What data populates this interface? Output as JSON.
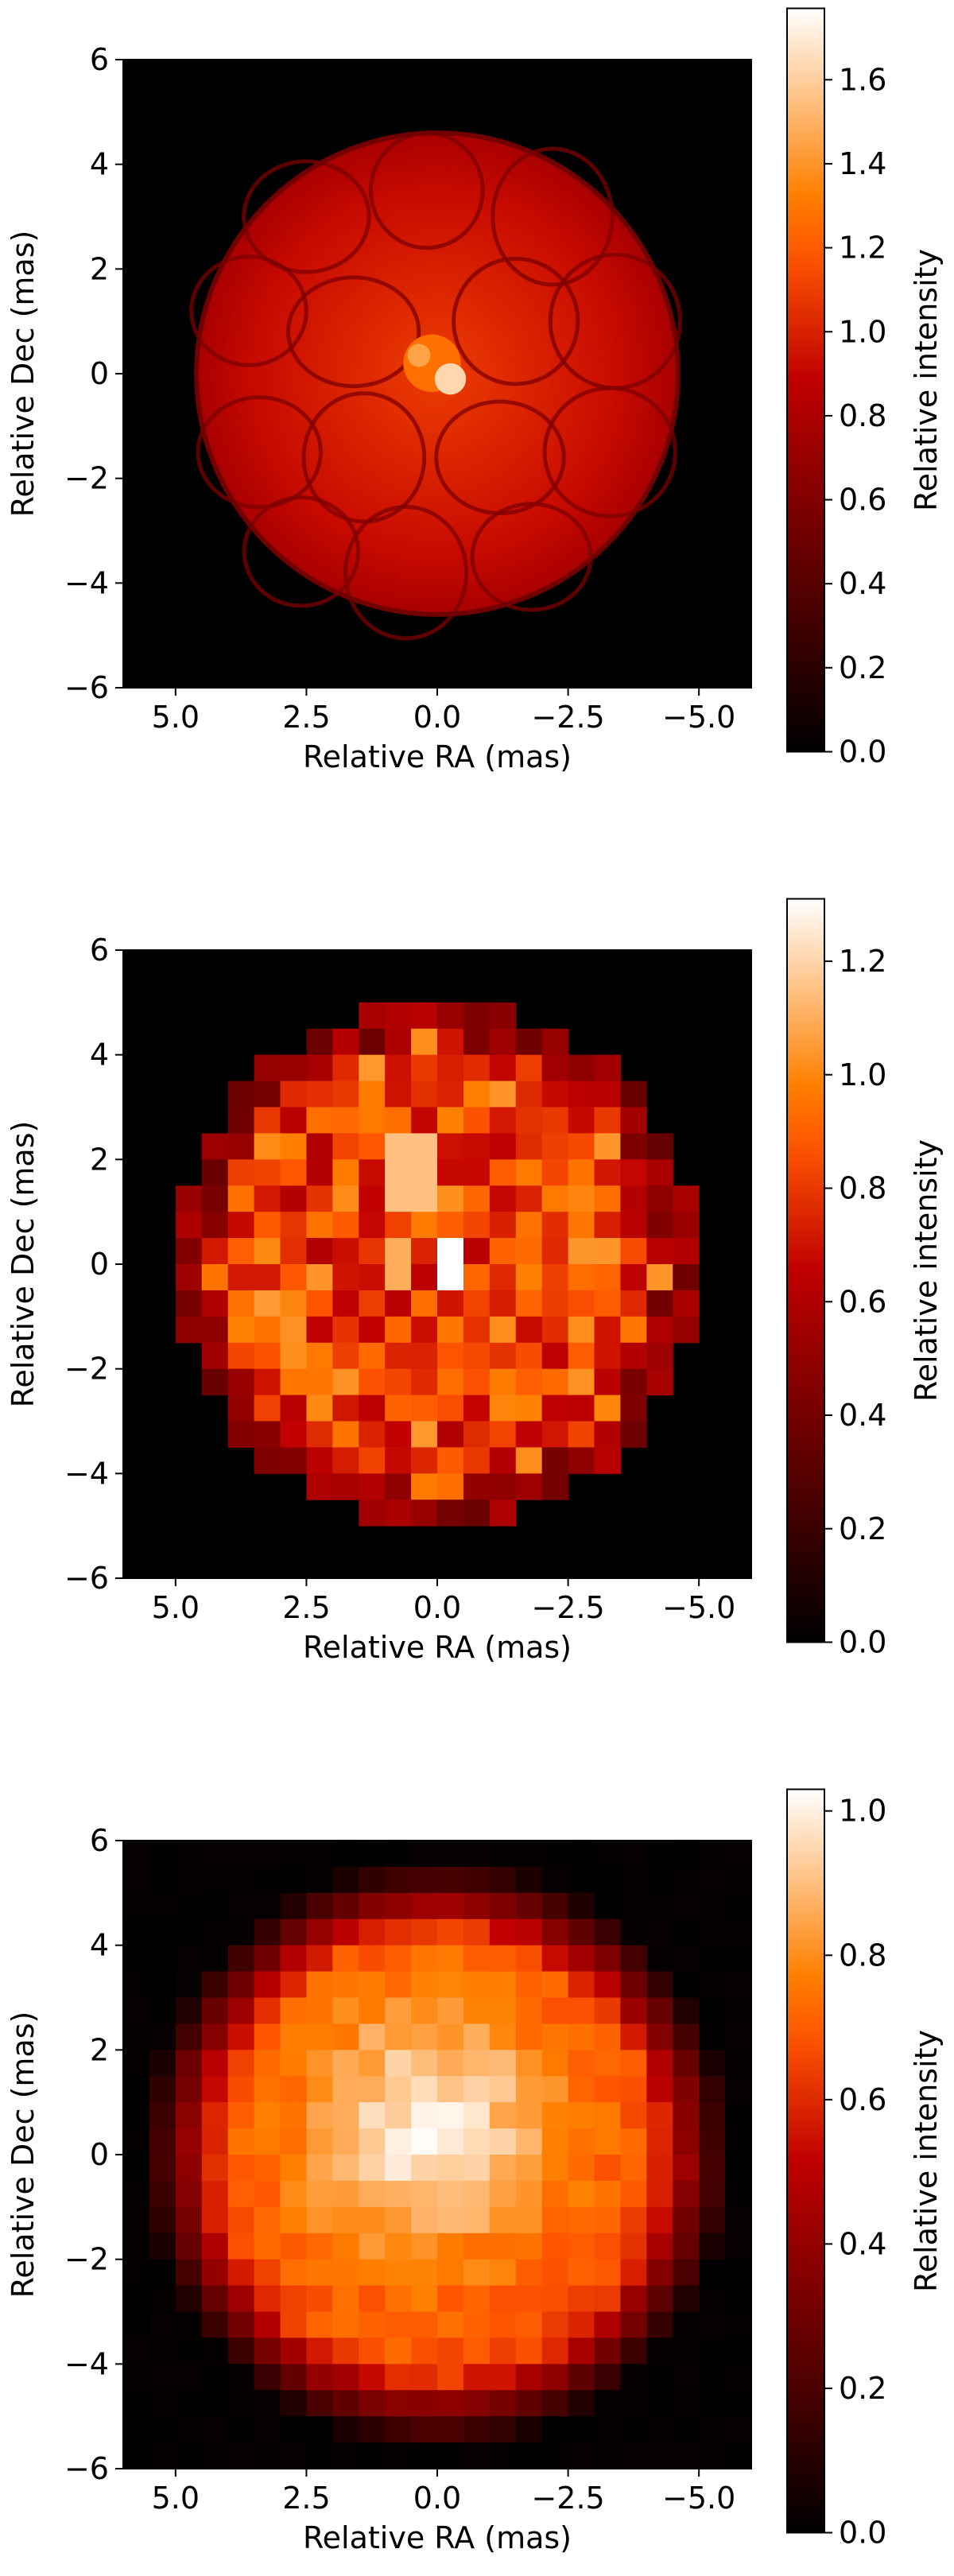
{
  "chart_data": [
    {
      "type": "heatmap",
      "panel": "top",
      "xlabel": "Relative RA (mas)",
      "ylabel": "Relative Dec (mas)",
      "xlim": [
        6.0,
        -6.0
      ],
      "ylim": [
        -6.0,
        6.0
      ],
      "x_ticks": [
        "5.0",
        "2.5",
        "0.0",
        "−2.5",
        "−5.0"
      ],
      "x_tick_values": [
        5.0,
        2.5,
        0.0,
        -2.5,
        -5.0
      ],
      "y_ticks": [
        "6",
        "4",
        "2",
        "0",
        "−2",
        "−4",
        "−6"
      ],
      "y_tick_values": [
        6,
        4,
        2,
        0,
        -2,
        -4,
        -6
      ],
      "colorbar": {
        "label": "Relative intensity",
        "range": [
          0.0,
          1.77
        ],
        "ticks": [
          "0.0",
          "0.2",
          "0.4",
          "0.6",
          "0.8",
          "1.0",
          "1.2",
          "1.4",
          "1.6"
        ],
        "tick_values": [
          0.0,
          0.2,
          0.4,
          0.6,
          0.8,
          1.0,
          1.2,
          1.4,
          1.6
        ]
      },
      "colormap": "gist_heat",
      "image": "high-resolution stellar surface with convection cells, radius about 4.6 mas, typical intensity about 0.9, bright center up to about 1.7"
    },
    {
      "type": "heatmap",
      "panel": "middle",
      "xlabel": "Relative RA (mas)",
      "ylabel": "Relative Dec (mas)",
      "xlim": [
        6.0,
        -6.0
      ],
      "ylim": [
        -6.0,
        6.0
      ],
      "x_ticks": [
        "5.0",
        "2.5",
        "0.0",
        "−2.5",
        "−5.0"
      ],
      "x_tick_values": [
        5.0,
        2.5,
        0.0,
        -2.5,
        -5.0
      ],
      "y_ticks": [
        "6",
        "4",
        "2",
        "0",
        "−2",
        "−4",
        "−6"
      ],
      "y_tick_values": [
        6,
        4,
        2,
        0,
        -2,
        -4,
        -6
      ],
      "colorbar": {
        "label": "Relative intensity",
        "range": [
          0.0,
          1.31
        ],
        "ticks": [
          "0.0",
          "0.2",
          "0.4",
          "0.6",
          "0.8",
          "1.0",
          "1.2"
        ],
        "tick_values": [
          0.0,
          0.2,
          0.4,
          0.6,
          0.8,
          1.0,
          1.2
        ]
      },
      "colormap": "gist_heat",
      "image": "pixelated image, 24x24 grid over 12 mas, disk radius about 5 mas, intensities 0.5 to 1.3"
    },
    {
      "type": "heatmap",
      "panel": "bottom",
      "xlabel": "Relative RA (mas)",
      "ylabel": "Relative Dec (mas)",
      "xlim": [
        6.0,
        -6.0
      ],
      "ylim": [
        -6.0,
        6.0
      ],
      "x_ticks": [
        "5.0",
        "2.5",
        "0.0",
        "−2.5",
        "−5.0"
      ],
      "x_tick_values": [
        5.0,
        2.5,
        0.0,
        -2.5,
        -5.0
      ],
      "y_ticks": [
        "6",
        "4",
        "2",
        "0",
        "−2",
        "−4",
        "−6"
      ],
      "y_tick_values": [
        6,
        4,
        2,
        0,
        -2,
        -4,
        -6
      ],
      "colorbar": {
        "label": "Relative intensity",
        "range": [
          0.0,
          1.03
        ],
        "ticks": [
          "0.0",
          "0.2",
          "0.4",
          "0.6",
          "0.8",
          "1.0"
        ],
        "tick_values": [
          0.0,
          0.2,
          0.4,
          0.6,
          0.8,
          1.0
        ]
      },
      "colormap": "gist_heat",
      "image": "reconstructed smooth pixel image, disk radius about 5 mas, bright center near 1.0 with darker limb"
    }
  ]
}
